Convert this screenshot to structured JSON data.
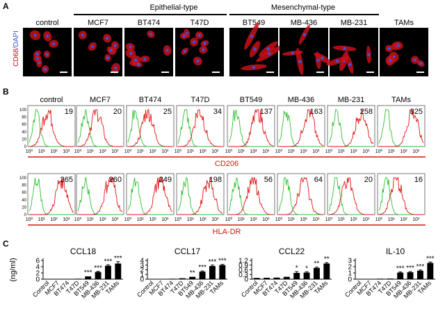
{
  "panel_a": {
    "letter": "A",
    "ylabel": "CD68/DAPI",
    "group_labels": [
      "Epithelial-type",
      "Mesenchymal-type"
    ],
    "conditions": [
      "control",
      "MCF7",
      "BT474",
      "T47D",
      "BT549",
      "MB-436",
      "MB-231",
      "TAMs"
    ]
  },
  "panel_b": {
    "letter": "B",
    "conditions": [
      "control",
      "MCF7",
      "BT474",
      "T47D",
      "BT549",
      "MB-436",
      "MB-231",
      "TAMs"
    ],
    "rows": [
      {
        "marker": "CD206",
        "values": [
          "19",
          "20",
          "25",
          "34",
          "137",
          "163",
          "258",
          "325"
        ]
      },
      {
        "marker": "HLA-DR",
        "values": [
          "265",
          "260",
          "249",
          "198",
          "56",
          "64",
          "20",
          "16"
        ]
      }
    ],
    "y_ticks": [
      "0",
      "20",
      "40",
      "60",
      "80",
      "100"
    ],
    "x_ticks": [
      "10⁰",
      "10¹",
      "10²",
      "10³"
    ]
  },
  "colors": {
    "isotype": "#2fbf2f",
    "stained": "#e01010",
    "marker_label": "#e01010",
    "cell_red": "#c81018",
    "nucleus_blue": "#3a52e0"
  },
  "chart_data": [
    {
      "type": "bar",
      "title": "CCL18",
      "ylabel": "(ng/ml)",
      "ylim": [
        0,
        6
      ],
      "yticks": [
        0,
        2,
        4,
        6
      ],
      "categories": [
        "Control",
        "MCF7",
        "BT474",
        "T47D",
        "BT549",
        "MB-436",
        "MB-231",
        "TAMs"
      ],
      "values": [
        0.05,
        0.05,
        0.05,
        0.15,
        0.9,
        2.3,
        4.3,
        5.0
      ],
      "errors": [
        0.02,
        0.02,
        0.02,
        0.05,
        0.15,
        0.2,
        0.3,
        0.6
      ],
      "annotations": [
        "",
        "",
        "",
        "",
        "***",
        "***",
        "***",
        "***"
      ]
    },
    {
      "type": "bar",
      "title": "CCL17",
      "ylabel": "",
      "ylim": [
        0,
        4
      ],
      "yticks": [
        0,
        1,
        2,
        3,
        4
      ],
      "categories": [
        "Control",
        "MCF7",
        "BT474",
        "T47D",
        "BT549",
        "MB-436",
        "MB-231",
        "TAMs"
      ],
      "values": [
        0.05,
        0.05,
        0.1,
        0.2,
        0.5,
        1.6,
        2.8,
        3.0
      ],
      "errors": [
        0.02,
        0.02,
        0.03,
        0.05,
        0.1,
        0.15,
        0.2,
        0.15
      ],
      "annotations": [
        "",
        "",
        "",
        "",
        "**",
        "***",
        "***",
        "***"
      ]
    },
    {
      "type": "bar",
      "title": "CCL22",
      "ylabel": "",
      "ylim": [
        0,
        1.2
      ],
      "yticks": [
        0,
        0.3,
        0.6,
        0.9,
        1.2
      ],
      "categories": [
        "Control",
        "MCF7",
        "BT474",
        "T47D",
        "BT549",
        "MB-436",
        "MB-231",
        "TAMs"
      ],
      "values": [
        0.08,
        0.09,
        0.1,
        0.15,
        0.4,
        0.42,
        0.72,
        1.0
      ],
      "errors": [
        0.02,
        0.02,
        0.02,
        0.03,
        0.08,
        0.05,
        0.05,
        0.06
      ],
      "annotations": [
        "",
        "",
        "",
        "",
        "*",
        "*",
        "**",
        "**"
      ]
    },
    {
      "type": "bar",
      "title": "IL-10",
      "ylabel": "",
      "ylim": [
        0,
        3
      ],
      "yticks": [
        0,
        1,
        2,
        3
      ],
      "categories": [
        "Control",
        "MCF7",
        "BT474",
        "T47D",
        "BT549",
        "MB-436",
        "MB-231",
        "TAMs"
      ],
      "values": [
        0.05,
        0.05,
        0.08,
        0.1,
        1.05,
        1.1,
        1.35,
        2.6
      ],
      "errors": [
        0.02,
        0.02,
        0.02,
        0.03,
        0.1,
        0.1,
        0.12,
        0.15
      ],
      "annotations": [
        "",
        "",
        "",
        "",
        "***",
        "***",
        "***",
        "***"
      ]
    }
  ],
  "panel_c": {
    "letter": "C"
  }
}
